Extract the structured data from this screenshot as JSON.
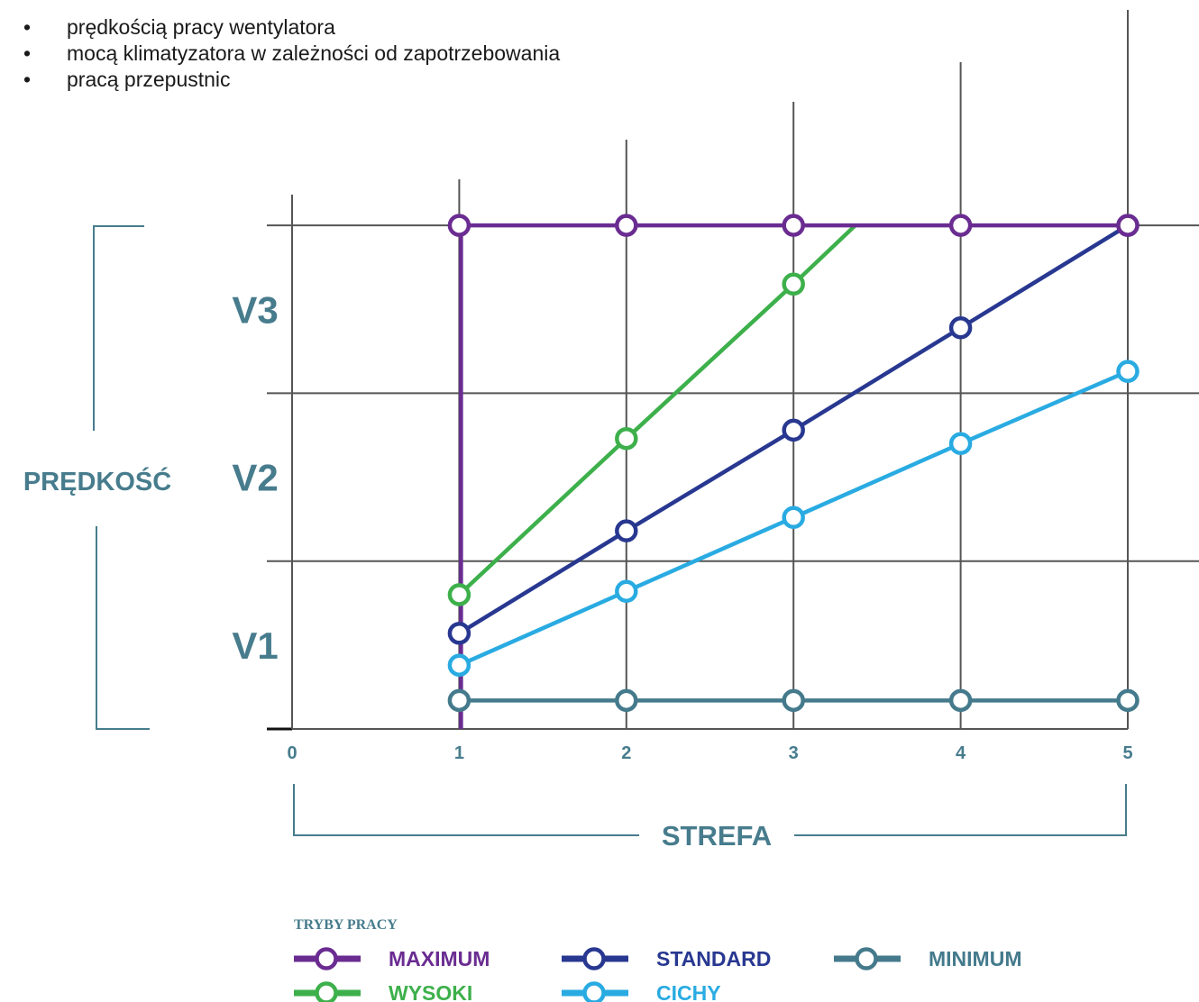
{
  "bullets": [
    "prędkością pracy wentylatora",
    "mocą klimatyzatora w zależności od zapotrzebowania",
    "pracą przepustnic"
  ],
  "chart_data": {
    "type": "line",
    "xlabel": "STREFA",
    "ylabel": "PRĘDKOŚĆ",
    "x_ticks": [
      "0",
      "1",
      "2",
      "3",
      "4",
      "5"
    ],
    "xlim": [
      0,
      5
    ],
    "ylim": [
      0,
      3
    ],
    "speed_bands": [
      "V1",
      "V2",
      "V3"
    ],
    "grid": true,
    "legend_title": "TRYBY PRACY",
    "legend_position": "bottom",
    "series": [
      {
        "name": "MAXIMUM",
        "color": "#6a2c91",
        "x": [
          1,
          1,
          2,
          3,
          4,
          5
        ],
        "y": [
          0,
          3,
          3,
          3,
          3,
          3
        ],
        "markers": [
          false,
          true,
          true,
          true,
          true,
          true
        ]
      },
      {
        "name": "WYSOKI",
        "color": "#3db04b",
        "x": [
          1,
          2,
          3,
          3.37
        ],
        "y": [
          0.8,
          1.73,
          2.65,
          3
        ],
        "markers": [
          true,
          true,
          true,
          false
        ]
      },
      {
        "name": "STANDARD",
        "color": "#283891",
        "x": [
          1,
          2,
          3,
          4,
          5
        ],
        "y": [
          0.57,
          1.18,
          1.78,
          2.39,
          3
        ],
        "markers": [
          true,
          true,
          true,
          true,
          true
        ]
      },
      {
        "name": "CICHY",
        "color": "#29abe2",
        "x": [
          1,
          2,
          3,
          4,
          5
        ],
        "y": [
          0.38,
          0.82,
          1.26,
          1.7,
          2.13
        ],
        "markers": [
          true,
          true,
          true,
          true,
          true
        ]
      },
      {
        "name": "MINIMUM",
        "color": "#447a8c",
        "x": [
          1,
          2,
          3,
          4,
          5
        ],
        "y": [
          0.17,
          0.17,
          0.17,
          0.17,
          0.17
        ],
        "markers": [
          true,
          true,
          true,
          true,
          true
        ]
      }
    ]
  },
  "colors": {
    "axis_label": "#477c8d",
    "grid": "#555555"
  }
}
